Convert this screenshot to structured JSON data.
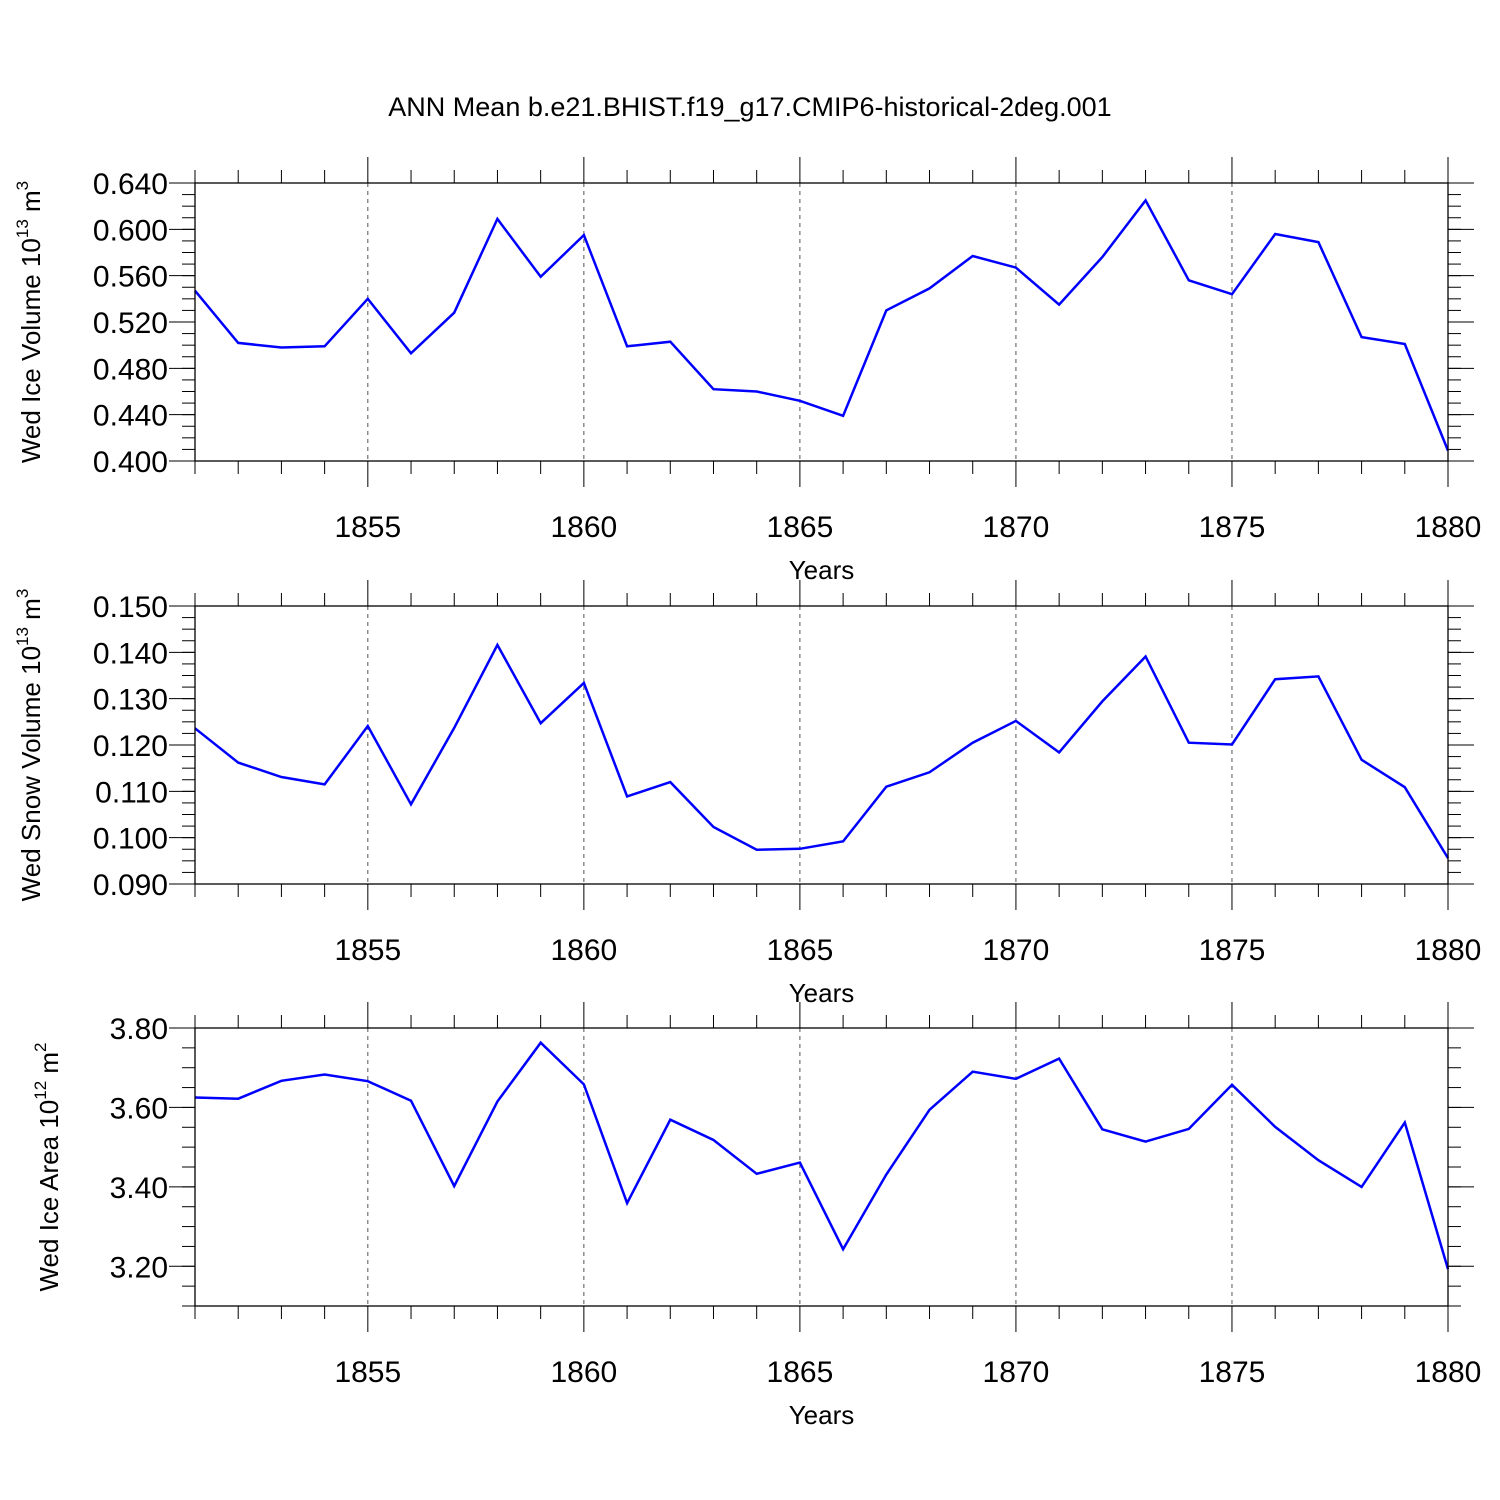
{
  "title": "ANN Mean b.e21.BHIST.f19_g17.CMIP6-historical-2deg.001",
  "colors": {
    "line": "#0000ff",
    "axis": "#000000",
    "grid": "#555555"
  },
  "chart_data": [
    {
      "type": "line",
      "xlabel": "Years",
      "ylabel": {
        "text": "Wed Ice Volume 10",
        "sup1": "13",
        "mid": " m",
        "sup2": "3"
      },
      "xlim": [
        1851,
        1880
      ],
      "ylim": [
        0.4,
        0.64
      ],
      "yticks": [
        "0.400",
        "0.440",
        "0.480",
        "0.520",
        "0.560",
        "0.600",
        "0.640"
      ],
      "yticks_values": [
        0.4,
        0.44,
        0.48,
        0.52,
        0.56,
        0.6,
        0.64
      ],
      "xticks": [
        "1855",
        "1860",
        "1865",
        "1870",
        "1875",
        "1880"
      ],
      "xticks_values": [
        1855,
        1860,
        1865,
        1870,
        1875,
        1880
      ],
      "grid": "vertical dashed at labeled years",
      "x": [
        1851,
        1852,
        1853,
        1854,
        1855,
        1856,
        1857,
        1858,
        1859,
        1860,
        1861,
        1862,
        1863,
        1864,
        1865,
        1866,
        1867,
        1868,
        1869,
        1870,
        1871,
        1872,
        1873,
        1874,
        1875,
        1876,
        1877,
        1878,
        1879,
        1880
      ],
      "values": [
        0.547,
        0.502,
        0.498,
        0.499,
        0.54,
        0.493,
        0.528,
        0.609,
        0.559,
        0.595,
        0.499,
        0.503,
        0.462,
        0.46,
        0.452,
        0.439,
        0.53,
        0.549,
        0.577,
        0.567,
        0.535,
        0.576,
        0.625,
        0.556,
        0.544,
        0.596,
        0.589,
        0.507,
        0.501,
        0.409
      ]
    },
    {
      "type": "line",
      "xlabel": "Years",
      "ylabel": {
        "text": "Wed Snow Volume 10",
        "sup1": "13",
        "mid": " m",
        "sup2": "3"
      },
      "xlim": [
        1851,
        1880
      ],
      "ylim": [
        0.09,
        0.15
      ],
      "yticks": [
        "0.090",
        "0.100",
        "0.110",
        "0.120",
        "0.130",
        "0.140",
        "0.150"
      ],
      "yticks_values": [
        0.09,
        0.1,
        0.11,
        0.12,
        0.13,
        0.14,
        0.15
      ],
      "xticks": [
        "1855",
        "1860",
        "1865",
        "1870",
        "1875",
        "1880"
      ],
      "xticks_values": [
        1855,
        1860,
        1865,
        1870,
        1875,
        1880
      ],
      "grid": "vertical dashed at labeled years",
      "x": [
        1851,
        1852,
        1853,
        1854,
        1855,
        1856,
        1857,
        1858,
        1859,
        1860,
        1861,
        1862,
        1863,
        1864,
        1865,
        1866,
        1867,
        1868,
        1869,
        1870,
        1871,
        1872,
        1873,
        1874,
        1875,
        1876,
        1877,
        1878,
        1879,
        1880
      ],
      "values": [
        0.1236,
        0.1162,
        0.1131,
        0.1115,
        0.1241,
        0.1072,
        0.1237,
        0.1416,
        0.1247,
        0.1334,
        0.1089,
        0.112,
        0.1023,
        0.0974,
        0.0976,
        0.0992,
        0.111,
        0.1141,
        0.1205,
        0.1252,
        0.1184,
        0.1294,
        0.1391,
        0.1205,
        0.1201,
        0.1342,
        0.1348,
        0.1168,
        0.1109,
        0.0956
      ]
    },
    {
      "type": "line",
      "xlabel": "Years",
      "ylabel": {
        "text": "Wed Ice Area 10",
        "sup1": "12",
        "mid": " m",
        "sup2": "2"
      },
      "xlim": [
        1851,
        1880
      ],
      "ylim": [
        3.1,
        3.8
      ],
      "yticks": [
        "3.20",
        "3.40",
        "3.60",
        "3.80"
      ],
      "yticks_values": [
        3.2,
        3.4,
        3.6,
        3.8
      ],
      "xticks": [
        "1855",
        "1860",
        "1865",
        "1870",
        "1875",
        "1880"
      ],
      "xticks_values": [
        1855,
        1860,
        1865,
        1870,
        1875,
        1880
      ],
      "grid": "vertical dashed at labeled years",
      "x": [
        1851,
        1852,
        1853,
        1854,
        1855,
        1856,
        1857,
        1858,
        1859,
        1860,
        1861,
        1862,
        1863,
        1864,
        1865,
        1866,
        1867,
        1868,
        1869,
        1870,
        1871,
        1872,
        1873,
        1874,
        1875,
        1876,
        1877,
        1878,
        1879,
        1880
      ],
      "values": [
        3.625,
        3.622,
        3.667,
        3.683,
        3.666,
        3.617,
        3.402,
        3.615,
        3.763,
        3.658,
        3.359,
        3.569,
        3.518,
        3.433,
        3.461,
        3.243,
        3.431,
        3.594,
        3.69,
        3.672,
        3.723,
        3.545,
        3.514,
        3.546,
        3.657,
        3.551,
        3.467,
        3.4,
        3.562,
        3.193
      ]
    }
  ]
}
